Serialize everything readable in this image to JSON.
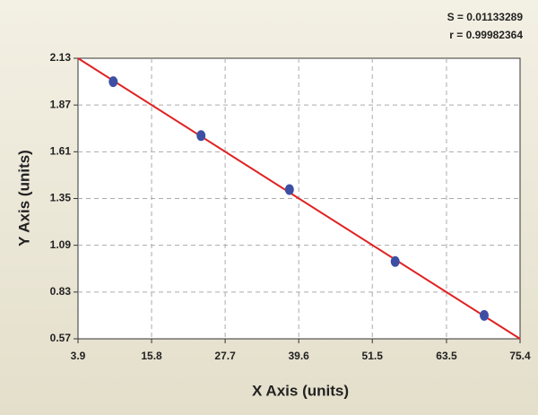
{
  "chart_data": {
    "type": "scatter",
    "annotations": [
      "S = 0.01133289",
      "r = 0.99982364"
    ],
    "x_label": "X Axis (units)",
    "y_label": "Y Axis (units)",
    "points": {
      "color": "#3d4fa3",
      "x": [
        9.6,
        23.8,
        38.1,
        55.2,
        69.6
      ],
      "values": [
        2.0,
        1.7,
        1.4,
        1.0,
        0.7
      ]
    },
    "fit": {
      "color": "#e02222",
      "x": [
        3.9,
        75.4
      ],
      "values": [
        2.13,
        0.57
      ]
    },
    "xlim": [
      3.9,
      75.4
    ],
    "ylim": [
      0.57,
      2.13
    ],
    "xticks": [
      3.9,
      15.8,
      27.7,
      39.6,
      51.5,
      63.5,
      75.4
    ],
    "yticks": [
      0.57,
      0.83,
      1.09,
      1.35,
      1.61,
      1.87,
      2.13
    ],
    "grid": true
  }
}
